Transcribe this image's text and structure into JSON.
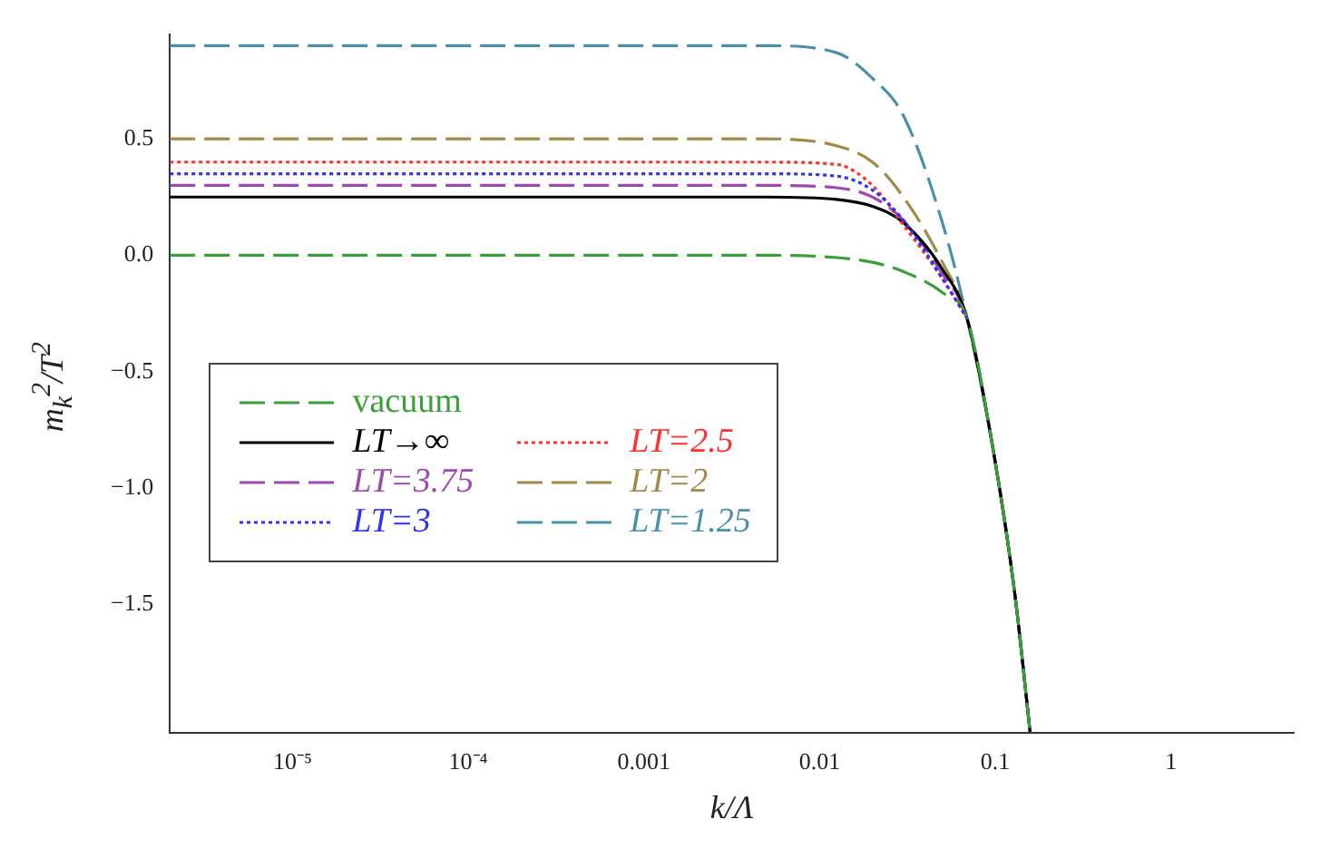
{
  "chart_data": {
    "type": "line",
    "xlabel": "k/Λ",
    "ylabel": "m$_{k}$$^{2}$/T$^{2}$",
    "log": "x",
    "grid": false,
    "legend": "bottom left",
    "marker": "none",
    "xlim": [
      2e-06,
      5
    ],
    "ylim": [
      -2.05,
      0.95
    ],
    "xticks": [
      {
        "value": 1e-05,
        "label": "10⁻⁵"
      },
      {
        "value": 0.0001,
        "label": "10⁻⁴"
      },
      0.001,
      0.01,
      0.1,
      1
    ],
    "yticks": [
      {
        "value": -1.5,
        "label": "−1.5"
      },
      {
        "value": -1,
        "label": "−1.0"
      },
      {
        "value": -0.5,
        "label": "−0.5"
      },
      {
        "value": 0,
        "label": "0.0"
      },
      0.5
    ],
    "x": [
      2e-06,
      0.001,
      0.005,
      0.0125,
      0.02,
      0.03,
      0.05,
      0.069,
      0.096,
      0.129,
      0.158
    ],
    "series": [
      {
        "name": "vacuum",
        "color": "#3a9e3a",
        "line_style": "dashed",
        "values": [
          0,
          0,
          0,
          -0.01,
          -0.03,
          -0.07,
          -0.16,
          -0.27,
          -0.81,
          -1.45,
          -2.05
        ]
      },
      {
        "name": "LT→∞",
        "color": "#000000",
        "line_style": "solid",
        "values": [
          0.25,
          0.25,
          0.25,
          0.24,
          0.21,
          0.14,
          -0.06,
          -0.27,
          -0.81,
          -1.45,
          -2.05
        ]
      },
      {
        "name": "LT=2.5",
        "color": "#ff3030",
        "line_style": "dotted",
        "values": [
          0.4,
          0.4,
          0.4,
          0.39,
          0.3,
          0.13,
          -0.1,
          -0.27,
          null,
          null,
          null
        ]
      },
      {
        "name": "LT=3.75",
        "color": "#9b4bb0",
        "line_style": "dashed",
        "values": [
          0.3,
          0.3,
          0.3,
          0.29,
          0.25,
          0.15,
          -0.08,
          -0.27,
          -0.81,
          -1.45,
          -2.05
        ]
      },
      {
        "name": "LT=2",
        "color": "#a08a4a",
        "line_style": "dashed",
        "values": [
          0.5,
          0.5,
          0.5,
          0.47,
          0.4,
          0.25,
          -0.03,
          -0.27,
          -0.81,
          -1.45,
          -2.05
        ]
      },
      {
        "name": "LT=3",
        "color": "#3030ff",
        "line_style": "dotted",
        "values": [
          0.35,
          0.35,
          0.35,
          0.34,
          0.28,
          0.15,
          -0.1,
          -0.27,
          null,
          null,
          null
        ]
      },
      {
        "name": "LT=1.25",
        "color": "#4a90a8",
        "line_style": "dashed",
        "values": [
          0.9,
          0.9,
          0.9,
          0.87,
          0.76,
          0.6,
          0.14,
          -0.27,
          -0.81,
          -1.45,
          -2.05
        ]
      }
    ]
  }
}
